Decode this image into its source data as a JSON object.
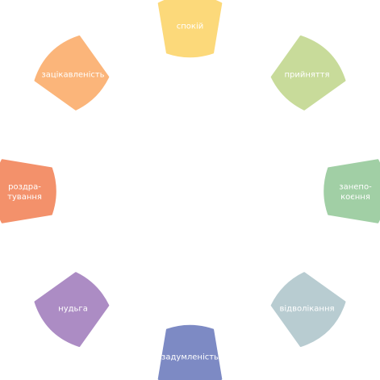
{
  "diagram": {
    "nodes": [
      {
        "id": "spokii",
        "lines": [
          "спокій"
        ],
        "color": "#fcd97a"
      },
      {
        "id": "pryiniattia",
        "lines": [
          "прийняття"
        ],
        "color": "#c8db9a"
      },
      {
        "id": "zanepokoiennia",
        "lines": [
          "занепо-",
          "коєння"
        ],
        "color": "#a1cfa5"
      },
      {
        "id": "vidvolikannia",
        "lines": [
          "відволікання"
        ],
        "color": "#b8ccd1"
      },
      {
        "id": "zadumlenist",
        "lines": [
          "задумленість"
        ],
        "color": "#7d8ac4"
      },
      {
        "id": "nudha",
        "lines": [
          "нудьга"
        ],
        "color": "#ac8cc4"
      },
      {
        "id": "rozdratuvannia",
        "lines": [
          "роздра-",
          "тування"
        ],
        "color": "#f3916b"
      },
      {
        "id": "zatsikavlenist",
        "lines": [
          "зацікавленість"
        ],
        "color": "#fbb57a"
      }
    ]
  }
}
